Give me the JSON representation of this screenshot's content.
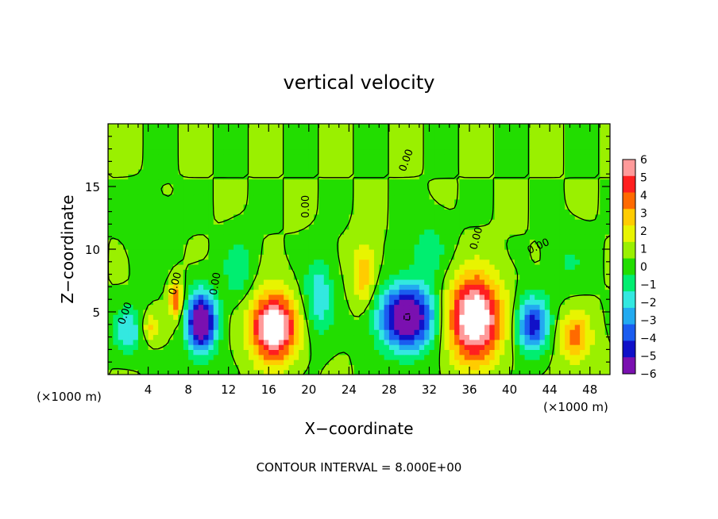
{
  "chart_data": {
    "type": "heatmap",
    "title": "vertical velocity",
    "xlabel": "X−coordinate",
    "ylabel": "Z−coordinate",
    "x_unit_left": "(×1000 m)",
    "x_unit_right": "(×1000 m)",
    "footer": "CONTOUR INTERVAL = 8.000E+00",
    "xlim": [
      0,
      50
    ],
    "ylim": [
      0,
      20
    ],
    "x_ticks": [
      4,
      8,
      12,
      16,
      20,
      24,
      28,
      32,
      36,
      40,
      44,
      48
    ],
    "y_ticks": [
      5,
      10,
      15
    ],
    "colorbar": {
      "levels": [
        6,
        5,
        4,
        3,
        2,
        1,
        0,
        -1,
        -2,
        -3,
        -4,
        -5,
        -6
      ],
      "colors": [
        "#ff9a9a",
        "#ff1f1f",
        "#ff6a00",
        "#ffcc00",
        "#e8f400",
        "#9af000",
        "#22dd00",
        "#00ee70",
        "#33e8e0",
        "#22aaf0",
        "#1a5cf0",
        "#1010c8",
        "#7a10b0"
      ]
    },
    "contour_label": "0.00",
    "blobs": [
      {
        "x": 16.5,
        "z": 3.8,
        "amp": 8,
        "sx": 2.2,
        "sz": 2.6
      },
      {
        "x": 36.5,
        "z": 4.5,
        "amp": 8,
        "sx": 2.6,
        "sz": 3.3
      },
      {
        "x": 46.5,
        "z": 3.0,
        "amp": 3.5,
        "sx": 1.6,
        "sz": 2.0
      },
      {
        "x": 25.5,
        "z": 8.0,
        "amp": 3,
        "sx": 1.2,
        "sz": 2.4
      },
      {
        "x": 6.8,
        "z": 6.0,
        "amp": 4,
        "sx": 0.7,
        "sz": 1.6
      },
      {
        "x": 4.2,
        "z": 3.8,
        "amp": 2.5,
        "sx": 0.8,
        "sz": 1.0
      },
      {
        "x": 9.3,
        "z": 4.2,
        "amp": -8,
        "sx": 1.5,
        "sz": 2.4
      },
      {
        "x": 2.0,
        "z": 3.5,
        "amp": -2.8,
        "sx": 1.5,
        "sz": 1.8
      },
      {
        "x": 29.8,
        "z": 4.6,
        "amp": -8,
        "sx": 2.8,
        "sz": 2.6
      },
      {
        "x": 42.3,
        "z": 4.0,
        "amp": -5.5,
        "sx": 1.6,
        "sz": 2.2
      },
      {
        "x": 21.0,
        "z": 6.2,
        "amp": -2.8,
        "sx": 1.5,
        "sz": 3.0
      },
      {
        "x": 13.0,
        "z": 8.5,
        "amp": -1.8,
        "sx": 1.5,
        "sz": 2.5
      },
      {
        "x": 32.0,
        "z": 10.0,
        "amp": -1.5,
        "sx": 2.0,
        "sz": 2.5
      },
      {
        "x": 4.5,
        "z": 10.5,
        "amp": -0.8,
        "sx": 2.0,
        "sz": 3.0
      },
      {
        "x": 46.0,
        "z": 9.0,
        "amp": -1.0,
        "sx": 2.0,
        "sz": 2.5
      }
    ]
  }
}
